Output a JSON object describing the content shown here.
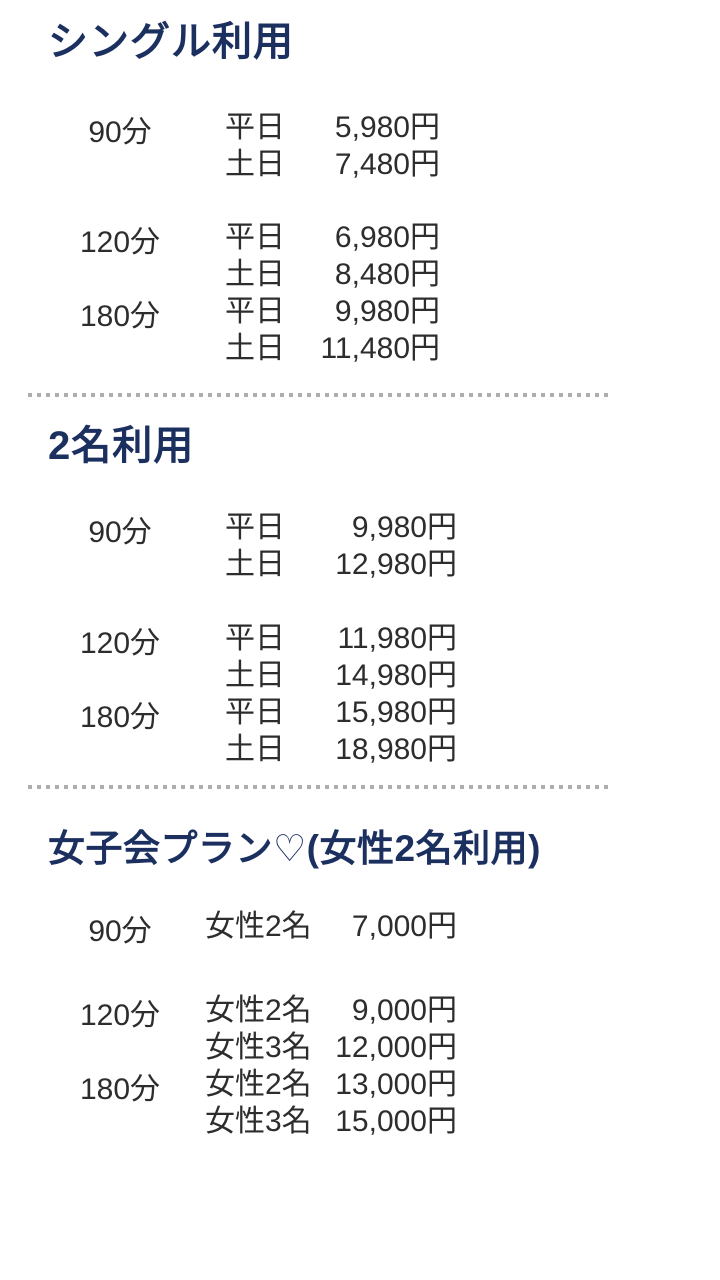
{
  "theme": {
    "background": "#ffffff",
    "heading_color": "#1c3060",
    "text_color": "#2d2d2d",
    "divider_color": "#adadad"
  },
  "sections": [
    {
      "title": "シングル利用",
      "rows": [
        {
          "duration": "90分",
          "lines": [
            {
              "label": "平日",
              "price": "5,980円"
            },
            {
              "label": "土日",
              "price": "7,480円"
            }
          ]
        },
        {
          "duration": "120分",
          "lines": [
            {
              "label": "平日",
              "price": "6,980円"
            },
            {
              "label": "土日",
              "price": "8,480円"
            }
          ]
        },
        {
          "duration": "180分",
          "lines": [
            {
              "label": "平日",
              "price": "9,980円"
            },
            {
              "label": "土日",
              "price": "11,480円"
            }
          ]
        }
      ]
    },
    {
      "title": "2名利用",
      "rows": [
        {
          "duration": "90分",
          "lines": [
            {
              "label": "平日",
              "price": "9,980円"
            },
            {
              "label": "土日",
              "price": "12,980円"
            }
          ]
        },
        {
          "duration": "120分",
          "lines": [
            {
              "label": "平日",
              "price": "11,980円"
            },
            {
              "label": "土日",
              "price": "14,980円"
            }
          ]
        },
        {
          "duration": "180分",
          "lines": [
            {
              "label": "平日",
              "price": "15,980円"
            },
            {
              "label": "土日",
              "price": "18,980円"
            }
          ]
        }
      ]
    },
    {
      "title": "女子会プラン♡(女性2名利用)",
      "rows": [
        {
          "duration": "90分",
          "lines": [
            {
              "label": "女性2名",
              "price": "7,000円"
            }
          ]
        },
        {
          "duration": "120分",
          "lines": [
            {
              "label": "女性2名",
              "price": "9,000円"
            },
            {
              "label": "女性3名",
              "price": "12,000円"
            }
          ]
        },
        {
          "duration": "180分",
          "lines": [
            {
              "label": "女性2名",
              "price": "13,000円"
            },
            {
              "label": "女性3名",
              "price": "15,000円"
            }
          ]
        }
      ]
    }
  ]
}
